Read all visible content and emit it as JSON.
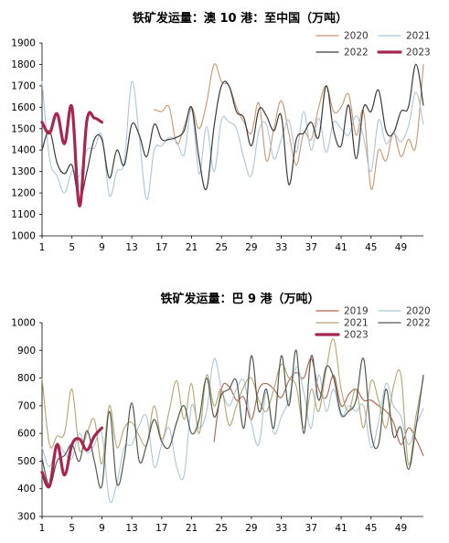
{
  "chart_data": [
    {
      "type": "line",
      "title": "铁矿发运量：澳 10 港：至中国（万吨）",
      "xlabel": "",
      "ylabel": "",
      "ylim": [
        1000,
        1900
      ],
      "yticks": [
        1000,
        1100,
        1200,
        1300,
        1400,
        1500,
        1600,
        1700,
        1800,
        1900
      ],
      "xlim": [
        1,
        52
      ],
      "xticks": [
        1,
        5,
        9,
        13,
        17,
        21,
        25,
        29,
        33,
        37,
        41,
        45,
        49
      ],
      "grid": false,
      "legend_position": "top-right",
      "series": [
        {
          "name": "2020",
          "color": "#c9956e",
          "x": [
            16,
            17,
            18,
            19,
            20,
            21,
            22,
            23,
            24,
            25,
            26,
            27,
            28,
            29,
            30,
            31,
            32,
            33,
            34,
            35,
            36,
            37,
            38,
            39,
            40,
            41,
            42,
            43,
            44,
            45,
            46,
            47,
            48,
            49,
            50,
            51,
            52
          ],
          "values": [
            1590,
            1580,
            1600,
            1430,
            1510,
            1600,
            1500,
            1620,
            1800,
            1720,
            1700,
            1600,
            1530,
            1480,
            1620,
            1350,
            1500,
            1630,
            1480,
            1330,
            1480,
            1450,
            1600,
            1700,
            1580,
            1600,
            1660,
            1470,
            1580,
            1220,
            1400,
            1350,
            1480,
            1370,
            1450,
            1420,
            1800
          ]
        },
        {
          "name": "2021",
          "color": "#aac6dc",
          "x": [
            1,
            2,
            3,
            4,
            5,
            6,
            7,
            8,
            9,
            10,
            11,
            12,
            13,
            14,
            15,
            16,
            17,
            18,
            19,
            20,
            21,
            22,
            23,
            24,
            25,
            26,
            27,
            28,
            29,
            30,
            31,
            32,
            33,
            34,
            35,
            36,
            37,
            38,
            39,
            40,
            41,
            42,
            43,
            44,
            45,
            46,
            47,
            48,
            49,
            50,
            51,
            52
          ],
          "values": [
            1720,
            1360,
            1280,
            1200,
            1300,
            1280,
            1400,
            1410,
            1470,
            1190,
            1300,
            1350,
            1720,
            1460,
            1170,
            1400,
            1420,
            1460,
            1440,
            1380,
            1590,
            1290,
            1510,
            1300,
            1540,
            1530,
            1500,
            1360,
            1280,
            1490,
            1520,
            1360,
            1450,
            1540,
            1390,
            1580,
            1400,
            1550,
            1390,
            1530,
            1500,
            1470,
            1560,
            1460,
            1300,
            1540,
            1430,
            1480,
            1440,
            1510,
            1670,
            1520
          ]
        },
        {
          "name": "2022",
          "color": "#3a3a3a",
          "x": [
            1,
            2,
            3,
            4,
            5,
            6,
            7,
            8,
            9,
            10,
            11,
            12,
            13,
            14,
            15,
            16,
            17,
            18,
            19,
            20,
            21,
            22,
            23,
            24,
            25,
            26,
            27,
            28,
            29,
            30,
            31,
            32,
            33,
            34,
            35,
            36,
            37,
            38,
            39,
            40,
            41,
            42,
            43,
            44,
            45,
            46,
            47,
            48,
            49,
            50,
            51,
            52
          ],
          "values": [
            1400,
            1490,
            1340,
            1290,
            1330,
            1170,
            1300,
            1450,
            1450,
            1270,
            1400,
            1330,
            1520,
            1470,
            1370,
            1520,
            1450,
            1450,
            1460,
            1490,
            1600,
            1360,
            1220,
            1510,
            1700,
            1700,
            1580,
            1550,
            1420,
            1590,
            1560,
            1490,
            1560,
            1240,
            1450,
            1480,
            1530,
            1460,
            1700,
            1490,
            1420,
            1610,
            1360,
            1600,
            1580,
            1680,
            1490,
            1480,
            1580,
            1600,
            1800,
            1610
          ]
        },
        {
          "name": "2023",
          "color": "#a8254f",
          "x": [
            1,
            2,
            3,
            4,
            5,
            6,
            7,
            8,
            9
          ],
          "values": [
            1530,
            1480,
            1570,
            1430,
            1600,
            1140,
            1540,
            1550,
            1530
          ]
        }
      ]
    },
    {
      "type": "line",
      "title": "铁矿发运量：巴 9 港（万吨）",
      "xlabel": "",
      "ylabel": "",
      "ylim": [
        300,
        1000
      ],
      "yticks": [
        300,
        400,
        500,
        600,
        700,
        800,
        900,
        1000
      ],
      "xlim": [
        1,
        52
      ],
      "xticks": [
        1,
        5,
        9,
        13,
        17,
        21,
        25,
        29,
        33,
        37,
        41,
        45,
        49
      ],
      "grid": false,
      "legend_position": "top-right",
      "series": [
        {
          "name": "2019",
          "color": "#b0604a",
          "x": [
            24,
            25,
            26,
            27,
            28,
            29,
            30,
            31,
            32,
            33,
            34,
            35,
            36,
            37,
            38,
            39,
            40,
            41,
            42,
            43,
            44,
            45,
            46,
            47,
            48,
            49,
            50,
            51,
            52
          ],
          "values": [
            570,
            760,
            770,
            720,
            730,
            650,
            760,
            780,
            760,
            730,
            790,
            820,
            800,
            870,
            760,
            730,
            810,
            700,
            740,
            760,
            720,
            720,
            700,
            680,
            640,
            560,
            620,
            580,
            520
          ]
        },
        {
          "name": "2020",
          "color": "#aac6dc",
          "x": [
            1,
            2,
            3,
            4,
            5,
            6,
            7,
            8,
            9,
            10,
            11,
            12,
            13,
            14,
            15,
            16,
            17,
            18,
            19,
            20,
            21,
            22,
            23,
            24,
            25,
            26,
            27,
            28,
            29,
            30,
            31,
            32,
            33,
            34,
            35,
            36,
            37,
            38,
            39,
            40,
            41,
            42,
            43,
            44,
            45,
            46,
            47,
            48,
            49,
            50,
            51,
            52
          ],
          "values": [
            550,
            480,
            560,
            530,
            510,
            600,
            530,
            560,
            600,
            360,
            420,
            550,
            560,
            630,
            660,
            480,
            560,
            620,
            480,
            450,
            700,
            620,
            680,
            870,
            760,
            700,
            760,
            790,
            640,
            560,
            750,
            600,
            660,
            720,
            840,
            750,
            620,
            810,
            680,
            760,
            660,
            700,
            680,
            700,
            550,
            640,
            780,
            700,
            660,
            560,
            630,
            690
          ]
        },
        {
          "name": "2021",
          "color": "#b5a46e",
          "x": [
            1,
            2,
            3,
            4,
            5,
            6,
            7,
            8,
            9,
            10,
            11,
            12,
            13,
            14,
            15,
            16,
            17,
            18,
            19,
            20,
            21,
            22,
            23,
            24,
            25,
            26,
            27,
            28,
            29,
            30,
            31,
            32,
            33,
            34,
            35,
            36,
            37,
            38,
            39,
            40,
            41,
            42,
            43,
            44,
            45,
            46,
            47,
            48,
            49,
            50,
            51,
            52
          ],
          "values": [
            800,
            560,
            590,
            600,
            760,
            540,
            600,
            650,
            490,
            700,
            550,
            620,
            640,
            590,
            560,
            700,
            580,
            680,
            790,
            650,
            780,
            600,
            810,
            700,
            760,
            630,
            700,
            770,
            800,
            720,
            680,
            760,
            850,
            800,
            770,
            620,
            760,
            680,
            830,
            940,
            760,
            680,
            760,
            620,
            790,
            720,
            620,
            770,
            810,
            490,
            660,
            800
          ]
        },
        {
          "name": "2022",
          "color": "#4f5a4f",
          "x": [
            1,
            2,
            3,
            4,
            5,
            6,
            7,
            8,
            9,
            10,
            11,
            12,
            13,
            14,
            15,
            16,
            17,
            18,
            19,
            20,
            21,
            22,
            23,
            24,
            25,
            26,
            27,
            28,
            29,
            30,
            31,
            32,
            33,
            34,
            35,
            36,
            37,
            38,
            39,
            40,
            41,
            42,
            43,
            44,
            45,
            46,
            47,
            48,
            49,
            50,
            51,
            52
          ],
          "values": [
            510,
            410,
            500,
            520,
            560,
            500,
            610,
            500,
            410,
            680,
            420,
            510,
            710,
            500,
            560,
            650,
            570,
            550,
            640,
            700,
            600,
            650,
            800,
            660,
            740,
            760,
            790,
            620,
            880,
            680,
            760,
            620,
            880,
            700,
            900,
            600,
            880,
            720,
            840,
            800,
            670,
            680,
            720,
            870,
            600,
            560,
            760,
            590,
            620,
            470,
            620,
            810
          ]
        },
        {
          "name": "2023",
          "color": "#a8254f",
          "x": [
            1,
            2,
            3,
            4,
            5,
            6,
            7,
            8,
            9
          ],
          "values": [
            460,
            410,
            560,
            450,
            560,
            580,
            540,
            590,
            620
          ]
        }
      ]
    }
  ]
}
